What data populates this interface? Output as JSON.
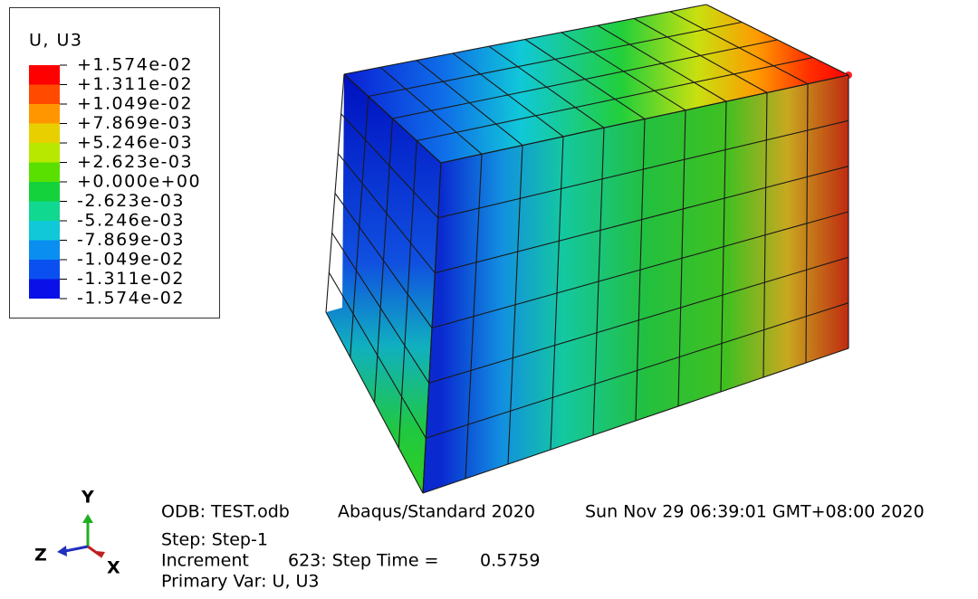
{
  "legend": {
    "title": "U, U3",
    "labels": [
      "+1.574e-02",
      "+1.311e-02",
      "+1.049e-02",
      "+7.869e-03",
      "+5.246e-03",
      "+2.623e-03",
      "+0.000e+00",
      "-2.623e-03",
      "-5.246e-03",
      "-7.869e-03",
      "-1.049e-02",
      "-1.311e-02",
      "-1.574e-02"
    ]
  },
  "triad": {
    "y": "Y",
    "z": "Z",
    "x": "X"
  },
  "info": {
    "odb": "ODB: TEST.odb",
    "solver": "Abaqus/Standard 2020",
    "date": "Sun Nov 29 06:39:01 GMT+08:00 2020",
    "step": "Step: Step-1",
    "increment": "Increment",
    "increment_value": "623: Step Time =",
    "step_time": "0.5759",
    "primary_var": "Primary Var: U, U3"
  }
}
